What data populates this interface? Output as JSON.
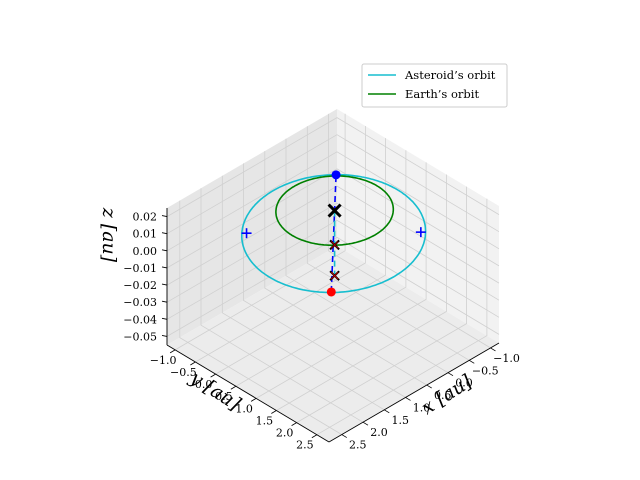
{
  "chart_data": {
    "type": "line3d",
    "title": "",
    "xlabel": "x [au]",
    "ylabel": "y [au]",
    "zlabel": "z [au]",
    "xlim": [
      -1.2,
      2.8
    ],
    "ylim": [
      -1.2,
      2.8
    ],
    "zlim": [
      -0.055,
      0.025
    ],
    "xticks": [
      -1.0,
      -0.5,
      0.0,
      0.5,
      1.0,
      1.5,
      2.0,
      2.5
    ],
    "yticks": [
      -1.0,
      -0.5,
      0.0,
      0.5,
      1.0,
      1.5,
      2.0,
      2.5
    ],
    "zticks": [
      0.02,
      0.01,
      0.0,
      -0.01,
      -0.02,
      -0.03,
      -0.04,
      -0.05
    ],
    "xtick_labels": [
      "−1.0",
      "−0.5",
      "0.0",
      "0.5",
      "1.0",
      "1.5",
      "2.0",
      "2.5"
    ],
    "ytick_labels": [
      "−1.0",
      "−0.5",
      "0.0",
      "0.5",
      "1.0",
      "1.5",
      "2.0",
      "2.5"
    ],
    "ztick_labels": [
      "0.02",
      "0.01",
      "0.00",
      "−0.01",
      "−0.02",
      "−0.03",
      "−0.04",
      "−0.05"
    ],
    "grid": true,
    "legend_position": "top-right",
    "view": {
      "elevation_deg": 20,
      "azimuth_deg": -135
    },
    "series": [
      {
        "name": "Asteroid’s orbit",
        "color": "#17becf",
        "kind": "orbit",
        "semi_major_au": 1.7,
        "eccentricity": 0.39,
        "perihelion_direction_xy": [
          -0.707,
          -0.707
        ],
        "inclination_extreme_z": 0.0
      },
      {
        "name": "Earth’s orbit",
        "color": "#008000",
        "kind": "orbit",
        "semi_major_au": 1.0,
        "eccentricity": 0.0,
        "perihelion_direction_xy": [
          1,
          0
        ],
        "inclination_extreme_z": 0.0
      }
    ],
    "points": [
      {
        "label": "aphelion",
        "x": 1.66,
        "y": 1.66,
        "z": 0.0,
        "color": "#ff0000",
        "marker": "circle"
      },
      {
        "label": "perihelion",
        "x": -0.73,
        "y": -0.73,
        "z": 0.0,
        "color": "#0000ff",
        "marker": "circle"
      },
      {
        "label": "node",
        "x": 1.5,
        "y": -0.6,
        "z": 0.0,
        "color": "#0000ff",
        "marker": "plus"
      },
      {
        "label": "node",
        "x": -0.6,
        "y": 1.5,
        "z": 0.0,
        "color": "#0000ff",
        "marker": "plus"
      },
      {
        "label": "sun",
        "x": 0.0,
        "y": 0.0,
        "z": 0.0,
        "color": "#000000",
        "marker": "x-big"
      },
      {
        "label": "projection",
        "x": 0.0,
        "y": 0.0,
        "z": -0.02,
        "color": "#cc0000",
        "marker": "x"
      },
      {
        "label": "projection",
        "x": 0.0,
        "y": 0.0,
        "z": -0.038,
        "color": "#cc0000",
        "marker": "x"
      }
    ],
    "lines": [
      {
        "label": "line-of-apsides",
        "from": [
          1.66,
          1.66,
          0.0
        ],
        "to": [
          -0.73,
          -0.73,
          0.0
        ],
        "color": "#0000ff",
        "style": "dashed"
      },
      {
        "label": "vertical",
        "from": [
          0.0,
          0.0,
          0.0
        ],
        "to": [
          0.0,
          0.0,
          -0.038
        ],
        "color": "#17becf",
        "style": "dashed"
      }
    ]
  }
}
